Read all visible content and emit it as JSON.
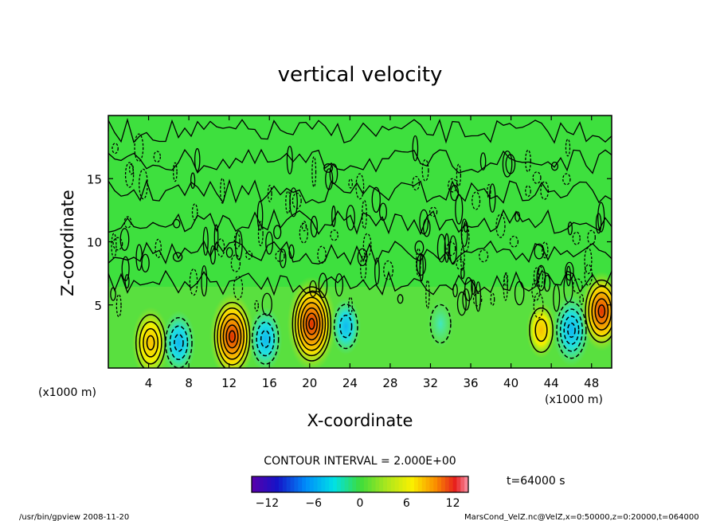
{
  "chart_data": {
    "type": "heatmap",
    "title": "vertical velocity",
    "xlabel": "X-coordinate",
    "ylabel": "Z-coordinate",
    "x_unit": "(x1000 m)",
    "y_unit": "(x1000 m)",
    "xlim": [
      0,
      50
    ],
    "ylim": [
      0,
      20
    ],
    "x_ticks": [
      4,
      8,
      12,
      16,
      20,
      24,
      28,
      32,
      36,
      40,
      44,
      48
    ],
    "y_ticks": [
      5,
      10,
      15
    ],
    "contour_interval_label": "CONTOUR INTERVAL = 2.000E+00",
    "time_label": "t=64000 s",
    "colorbar": {
      "range": [
        -14,
        14
      ],
      "ticks": [
        -12,
        -6,
        0,
        6,
        12
      ]
    },
    "features": [
      {
        "kind": "updraft",
        "x": 4.2,
        "z": 2.0,
        "value": 8
      },
      {
        "kind": "downdraft",
        "x": 7.0,
        "z": 2.0,
        "value": -6
      },
      {
        "kind": "updraft",
        "x": 12.3,
        "z": 2.5,
        "value": 12
      },
      {
        "kind": "downdraft",
        "x": 15.6,
        "z": 2.3,
        "value": -6
      },
      {
        "kind": "updraft",
        "x": 20.2,
        "z": 3.5,
        "value": 14
      },
      {
        "kind": "downdraft",
        "x": 23.6,
        "z": 3.3,
        "value": -4
      },
      {
        "kind": "downdraft",
        "x": 33.0,
        "z": 3.5,
        "value": -2
      },
      {
        "kind": "updraft",
        "x": 43.0,
        "z": 3.0,
        "value": 4
      },
      {
        "kind": "downdraft",
        "x": 46.0,
        "z": 3.0,
        "value": -8
      },
      {
        "kind": "updraft",
        "x": 49.0,
        "z": 4.5,
        "value": 10
      }
    ]
  },
  "footer": {
    "left": "/usr/bin/gpview  2008-11-20",
    "right": "MarsCond_VelZ.nc@VelZ,x=0:50000,z=0:20000,t=064000"
  }
}
